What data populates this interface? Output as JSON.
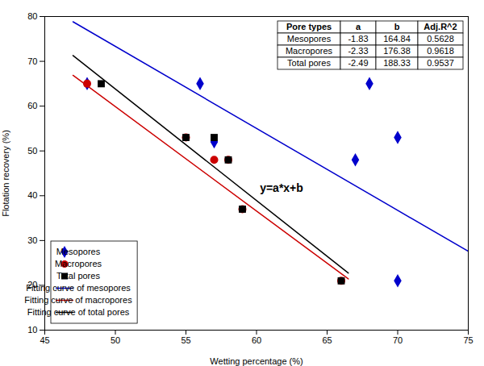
{
  "chart_data": {
    "type": "scatter",
    "xlabel": "Wetting percentage (%)",
    "ylabel": "Flotation recovery (%)",
    "xlim": [
      45,
      75
    ],
    "ylim": [
      10,
      80
    ],
    "xticks": [
      45,
      50,
      55,
      60,
      65,
      70,
      75
    ],
    "yticks": [
      10,
      20,
      30,
      40,
      50,
      60,
      70,
      80
    ],
    "legend": "lower left",
    "annotations": [
      "y=a*x+b"
    ],
    "series": [
      {
        "name": "Mesopores",
        "type": "scatter",
        "marker": "diamond",
        "color": "#0000CC",
        "x": [
          48,
          56,
          57,
          67,
          68,
          70,
          70
        ],
        "y": [
          65,
          65,
          52,
          48,
          65,
          53,
          21
        ]
      },
      {
        "name": "Macropores",
        "type": "scatter",
        "marker": "circle",
        "color": "#CC0000",
        "x": [
          48,
          55,
          57,
          58,
          59,
          66
        ],
        "y": [
          65,
          53,
          48,
          48,
          37,
          21
        ]
      },
      {
        "name": "Total pores",
        "type": "scatter",
        "marker": "square",
        "color": "#000000",
        "x": [
          49,
          55,
          57,
          58,
          59,
          66
        ],
        "y": [
          65,
          53,
          53,
          48,
          37,
          21
        ]
      },
      {
        "name": "Fitting curve of mesopores",
        "type": "line",
        "line_style": "solid",
        "color": "#0000CC",
        "x": [
          47,
          75
        ],
        "y": [
          78.83,
          27.59
        ]
      },
      {
        "name": "Fitting curve of macropores",
        "type": "line",
        "line_style": "solid",
        "color": "#CC0000",
        "x": [
          47,
          66.5
        ],
        "y": [
          66.87,
          21.435
        ]
      },
      {
        "name": "Fitting curve of total pores",
        "type": "line",
        "line_style": "solid",
        "color": "#000000",
        "x": [
          47,
          66.5
        ],
        "y": [
          71.3,
          22.745
        ]
      }
    ],
    "table": {
      "headers": [
        "Pore types",
        "a",
        "b",
        "Adj.R^2"
      ],
      "rows": [
        [
          "Mesopores",
          "-1.83",
          "164.84",
          "0.5628"
        ],
        [
          "Macropores",
          "-2.33",
          "176.38",
          "0.9618"
        ],
        [
          "Total pores",
          "-2.49",
          "188.33",
          "0.9537"
        ]
      ]
    }
  }
}
